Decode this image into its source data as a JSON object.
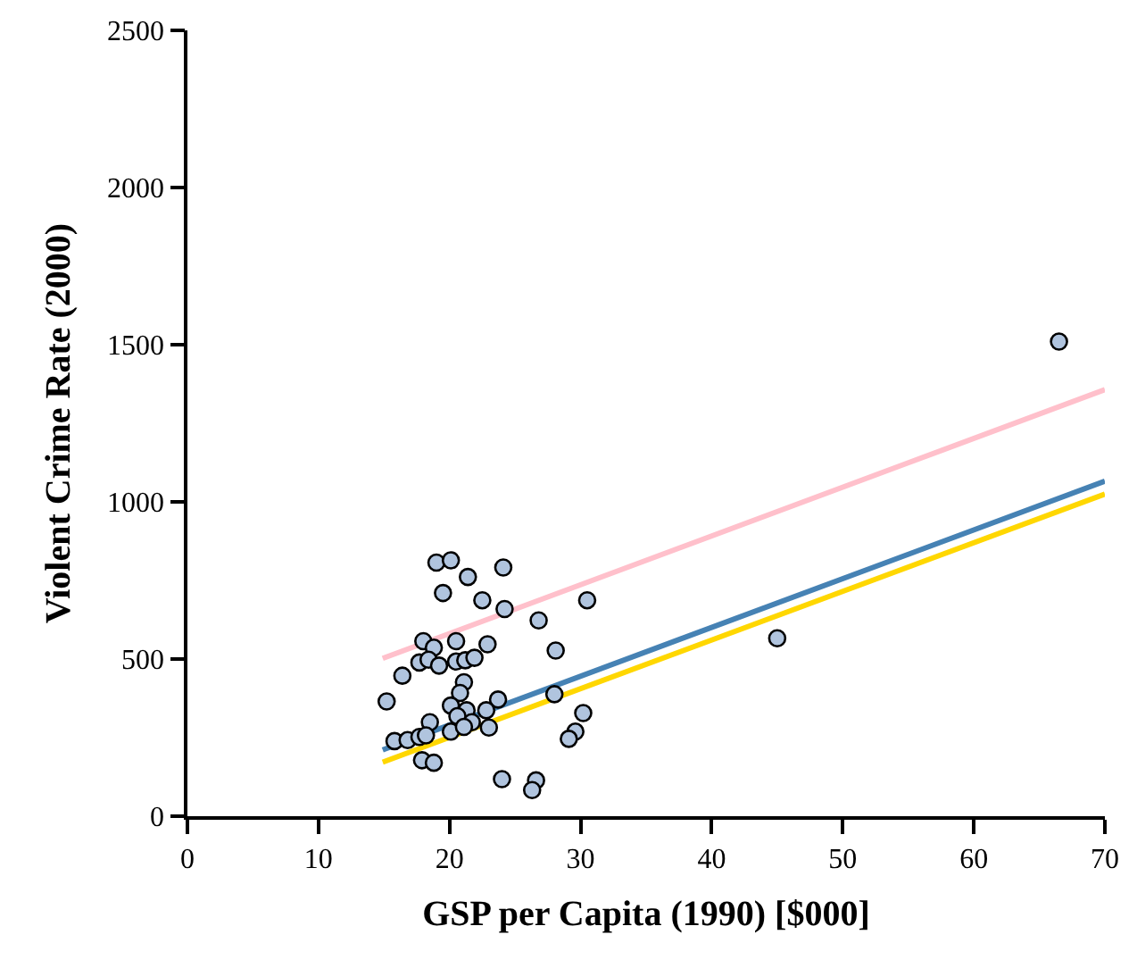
{
  "chart_data": {
    "type": "scatter",
    "xlabel": "GSP per Capita (1990) [$000]",
    "ylabel": "Violent Crime Rate (2000)",
    "xlim": [
      0,
      70
    ],
    "xticks": [
      0,
      10,
      20,
      30,
      40,
      50,
      60,
      70
    ],
    "ylim": [
      0,
      2500
    ],
    "yticks": [
      0,
      500,
      1000,
      1500,
      2000,
      2500
    ],
    "series": [
      {
        "marker": "circle",
        "color": "#b0c4de",
        "x": [
          19.0,
          20.1,
          24.1,
          21.4,
          19.5,
          22.5,
          24.2,
          30.5,
          26.8,
          18.0,
          18.8,
          20.5,
          22.9,
          28.1,
          17.7,
          18.4,
          19.2,
          20.5,
          21.2,
          21.9,
          16.4,
          15.2,
          21.1,
          20.8,
          20.1,
          23.7,
          28.0,
          22.8,
          21.3,
          20.6,
          21.7,
          23.0,
          20.1,
          21.1,
          18.5,
          30.2,
          29.6,
          29.1,
          15.8,
          16.8,
          17.7,
          18.2,
          17.9,
          18.8,
          24.0,
          26.6,
          26.3,
          66.5,
          45.0
        ],
        "values": [
          807,
          814,
          791,
          761,
          710,
          687,
          659,
          687,
          623,
          557,
          536,
          557,
          547,
          527,
          489,
          498,
          479,
          492,
          496,
          504,
          447,
          365,
          426,
          392,
          352,
          371,
          388,
          337,
          337,
          318,
          299,
          282,
          269,
          284,
          299,
          328,
          269,
          246,
          239,
          242,
          252,
          257,
          178,
          170,
          118,
          114,
          83,
          1510,
          566
        ]
      },
      {
        "type": "line",
        "color": "#ffc0cb",
        "x": [
          14.9,
          70
        ],
        "values": [
          502,
          1357
        ]
      },
      {
        "type": "line",
        "color": "#4682b4",
        "x": [
          14.9,
          70
        ],
        "values": [
          211,
          1066
        ]
      },
      {
        "type": "line",
        "color": "#ffd700",
        "x": [
          14.9,
          70
        ],
        "values": [
          172,
          1025
        ]
      }
    ]
  }
}
